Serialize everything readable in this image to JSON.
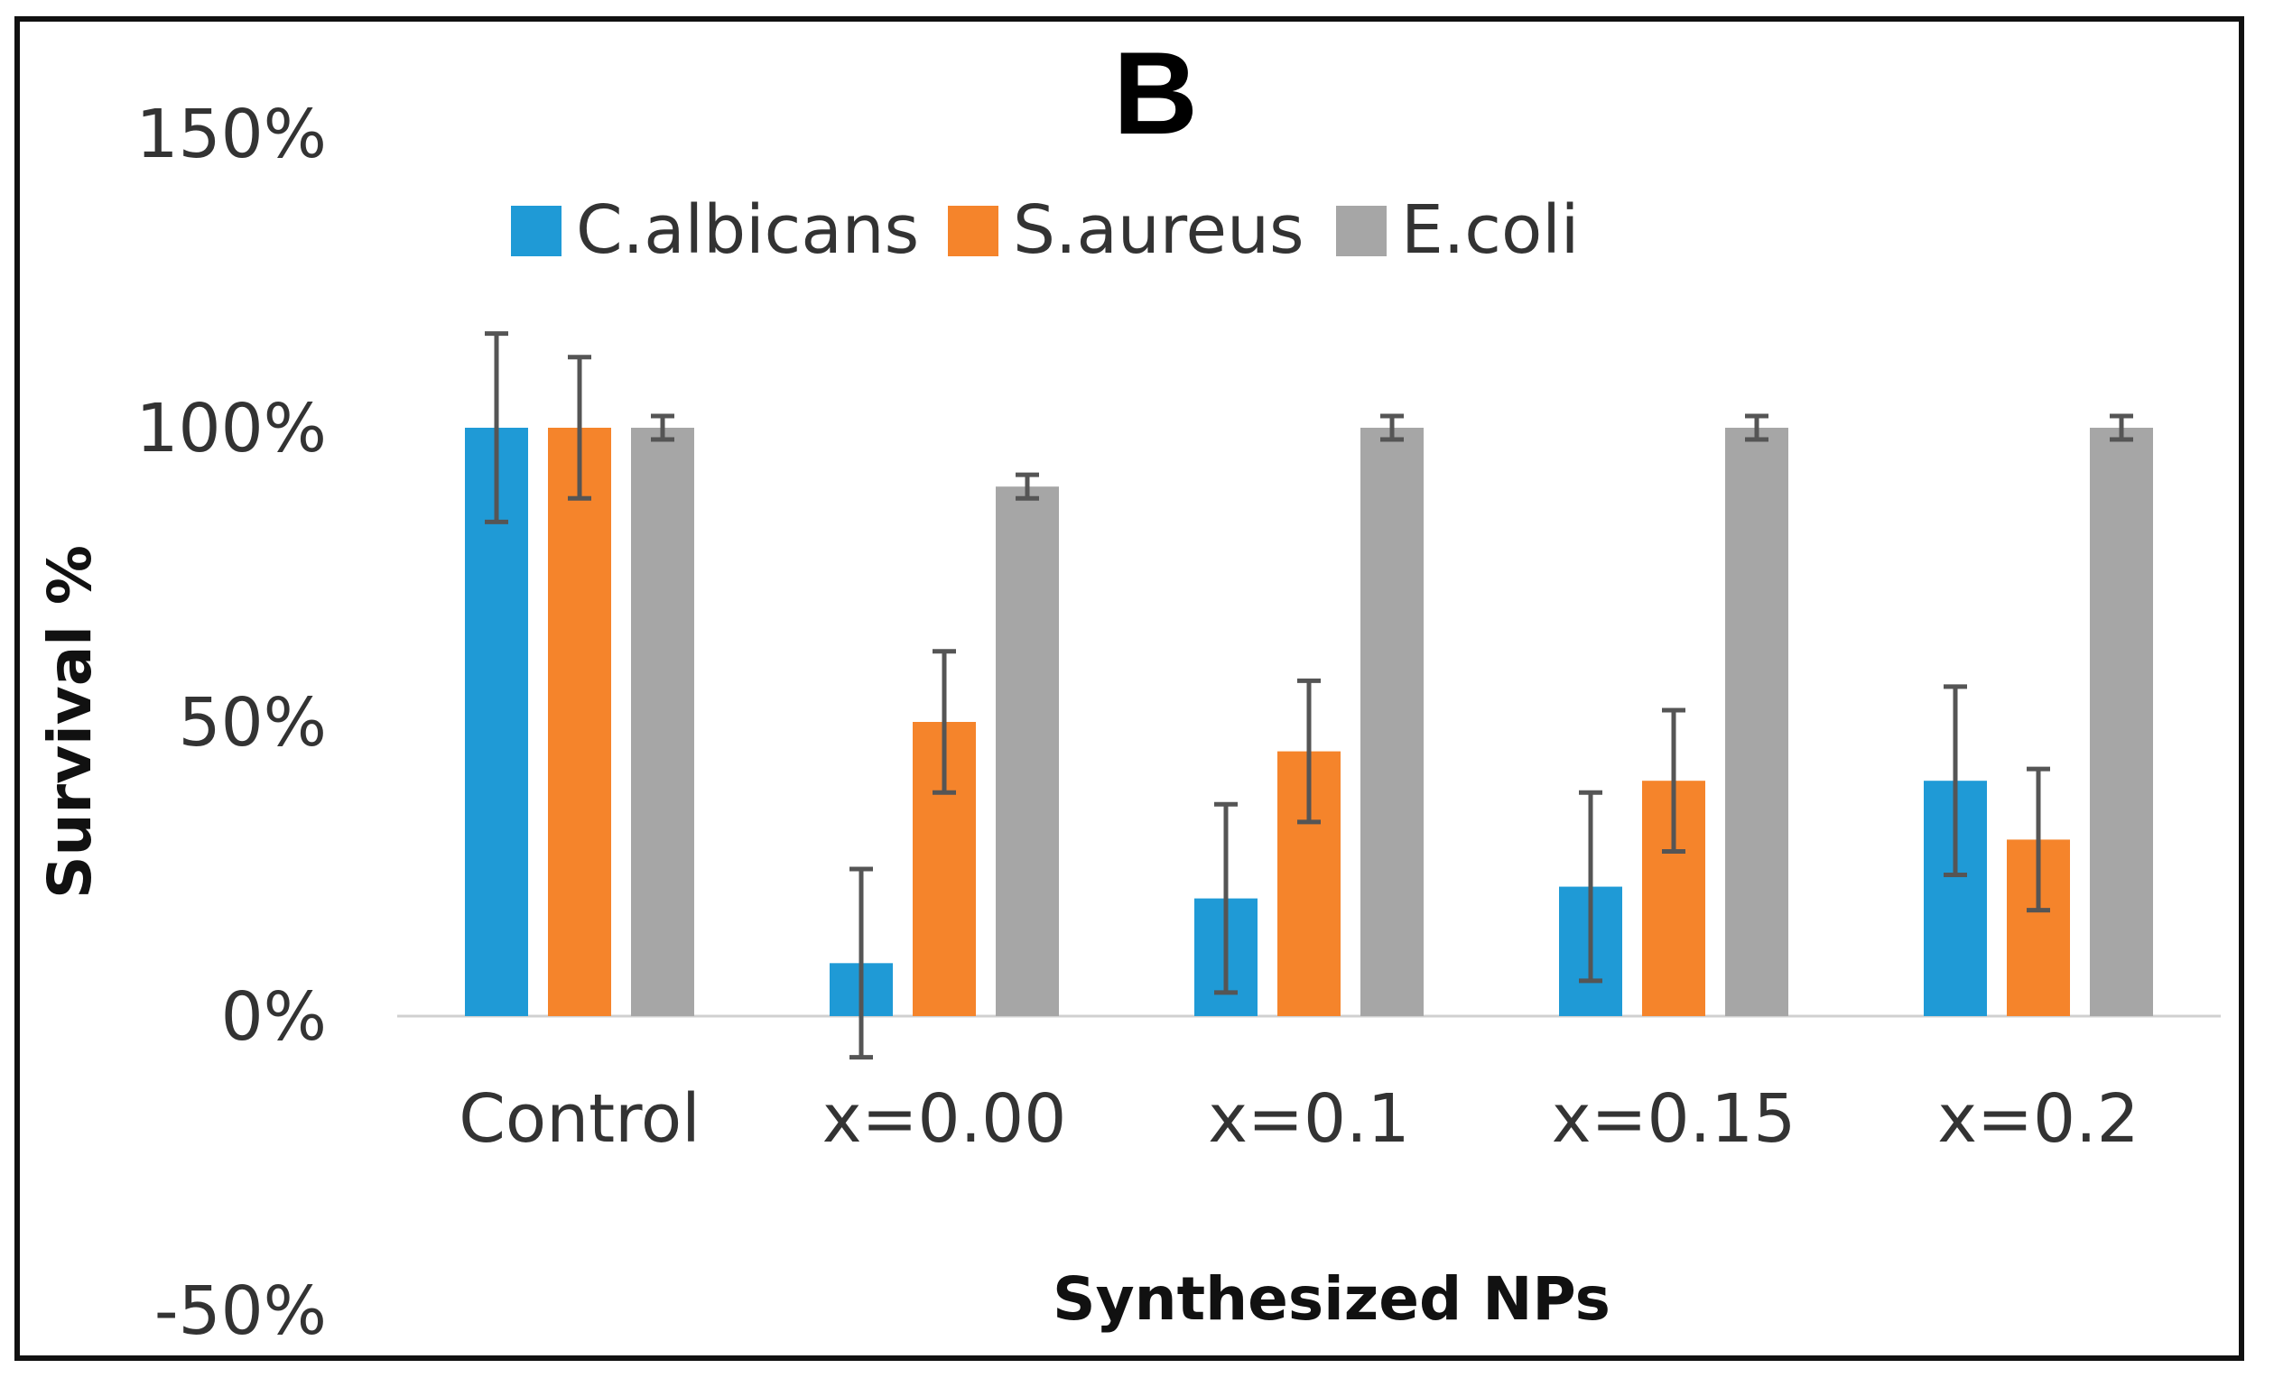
{
  "chart_data": {
    "type": "bar",
    "title": "B",
    "xlabel": "Synthesized NPs",
    "ylabel": "Survival %",
    "categories": [
      "Control",
      "x=0.00",
      "x=0.1",
      "x=0.15",
      "x=0.2"
    ],
    "series": [
      {
        "name": "C.albicans",
        "color": "#1f9ad6",
        "values": [
          100,
          9,
          20,
          22,
          40
        ],
        "errors": [
          16,
          16,
          16,
          16,
          16
        ]
      },
      {
        "name": "S.aureus",
        "color": "#f5842b",
        "values": [
          100,
          50,
          45,
          40,
          30
        ],
        "errors": [
          12,
          12,
          12,
          12,
          12
        ]
      },
      {
        "name": "E.coli",
        "color": "#a6a6a6",
        "values": [
          100,
          90,
          100,
          100,
          100
        ],
        "errors": [
          2,
          2,
          2,
          2,
          2
        ]
      }
    ],
    "ylim": [
      -50,
      150
    ],
    "yticks": [
      -50,
      0,
      50,
      100,
      150
    ],
    "ytick_labels": [
      "-50%",
      "0%",
      "50%",
      "100%",
      "150%"
    ],
    "legend_position": "top-center",
    "grid": false
  }
}
